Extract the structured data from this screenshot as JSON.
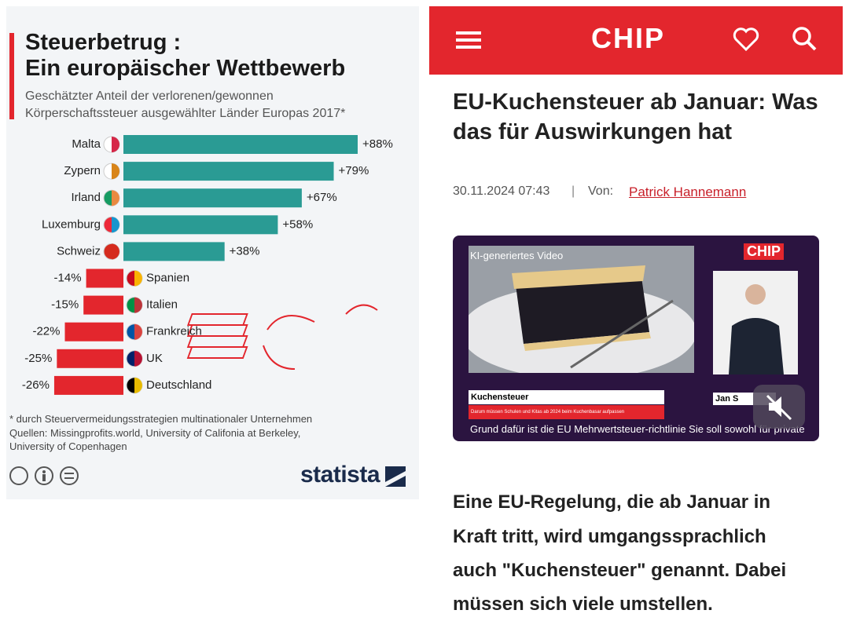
{
  "chart_data": {
    "type": "bar",
    "orientation": "horizontal",
    "title": [
      "Steuerbetrug :",
      "Ein europäischer Wettbewerb"
    ],
    "subtitle": [
      "Geschätzter Anteil der verlorenen/gewonnen",
      "Körperschaftssteuer ausgewählter Länder Europas 2017*"
    ],
    "categories": [
      "Malta",
      "Zypern",
      "Irland",
      "Luxemburg",
      "Schweiz",
      "Spanien",
      "Italien",
      "Frankreich",
      "UK",
      "Deutschland"
    ],
    "values": [
      88,
      79,
      67,
      58,
      38,
      -14,
      -15,
      -22,
      -25,
      -26
    ],
    "value_labels": [
      "+88%",
      "+79%",
      "+67%",
      "+58%",
      "+38%",
      "-14%",
      "-15%",
      "-22%",
      "-25%",
      "-26%"
    ],
    "positive_color": "#2a9b94",
    "negative_color": "#e3262d",
    "footnote": "* durch Steuervermeidungsstrategien multinationaler Unternehmen",
    "sources": [
      "Quellen: Missingprofits.world, University of Califonia at Berkeley,",
      "University of Copenhagen"
    ],
    "brand": "statista"
  },
  "article": {
    "logo": "CHIP",
    "headline": [
      "EU-Kuchensteuer ab Januar: Was",
      "das für Auswirkungen hat"
    ],
    "date": "30.11.2024 07:43",
    "separator": "|",
    "author_prefix": "Von:",
    "author": "Patrick Hannemann",
    "video": {
      "badge": "KI-generiertes Video",
      "logo": "CHIP",
      "lower_third": "Kuchensteuer",
      "lower_third_sub": "Darum müssen Schulen und Kitas ab 2024 beim Kuchenbasar aufpassen",
      "speaker": "Jan S",
      "caption": "Grund dafür ist die EU Mehrwertsteuer-richtlinie Sie soll sowohl für private"
    },
    "lead": [
      "Eine EU-Regelung, die ab Januar in",
      "Kraft tritt, wird umgangssprachlich",
      "auch \"Kuchensteuer\" genannt. Dabei",
      "müssen sich viele umstellen."
    ]
  }
}
